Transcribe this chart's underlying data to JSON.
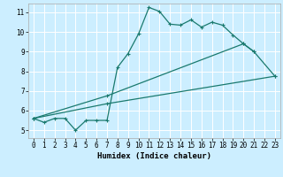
{
  "title": "",
  "xlabel": "Humidex (Indice chaleur)",
  "bg_color": "#cceeff",
  "grid_color": "#ffffff",
  "line_color": "#1a7a6e",
  "xlim": [
    -0.5,
    23.5
  ],
  "ylim": [
    4.6,
    11.45
  ],
  "xticks": [
    0,
    1,
    2,
    3,
    4,
    5,
    6,
    7,
    8,
    9,
    10,
    11,
    12,
    13,
    14,
    15,
    16,
    17,
    18,
    19,
    20,
    21,
    22,
    23
  ],
  "yticks": [
    5,
    6,
    7,
    8,
    9,
    10,
    11
  ],
  "line1_x": [
    0,
    1,
    2,
    3,
    4,
    5,
    6,
    7,
    8,
    9,
    10,
    11,
    12,
    13,
    14,
    15,
    16,
    17,
    18,
    19,
    20,
    21
  ],
  "line1_y": [
    5.6,
    5.4,
    5.6,
    5.6,
    5.0,
    5.5,
    5.5,
    5.5,
    8.2,
    8.9,
    9.9,
    11.25,
    11.05,
    10.4,
    10.35,
    10.62,
    10.25,
    10.5,
    10.35,
    9.85,
    9.4,
    9.0
  ],
  "line2_x": [
    0,
    7,
    20,
    21,
    23
  ],
  "line2_y": [
    5.6,
    6.75,
    9.4,
    9.0,
    7.75
  ],
  "line3_x": [
    0,
    7,
    23
  ],
  "line3_y": [
    5.6,
    6.35,
    7.75
  ]
}
